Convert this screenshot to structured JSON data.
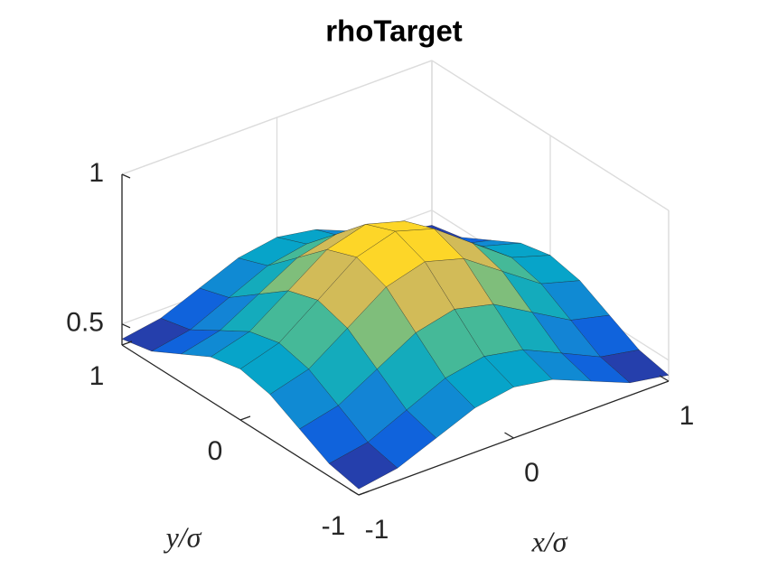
{
  "chart_data": {
    "type": "surface",
    "title": "rhoTarget",
    "xlabel": "x/σ",
    "ylabel": "y/σ",
    "x": [
      -1,
      -0.75,
      -0.5,
      -0.25,
      0,
      0.25,
      0.5,
      0.75,
      1
    ],
    "y": [
      -1,
      -0.75,
      -0.5,
      -0.25,
      0,
      0.25,
      0.5,
      0.75,
      1
    ],
    "z": [
      [
        0.45,
        0.472,
        0.525,
        0.578,
        0.6,
        0.578,
        0.525,
        0.472,
        0.45
      ],
      [
        0.472,
        0.496,
        0.556,
        0.615,
        0.64,
        0.615,
        0.556,
        0.496,
        0.472
      ],
      [
        0.525,
        0.556,
        0.63,
        0.704,
        0.735,
        0.704,
        0.63,
        0.556,
        0.525
      ],
      [
        0.578,
        0.615,
        0.704,
        0.794,
        0.831,
        0.794,
        0.704,
        0.615,
        0.578
      ],
      [
        0.6,
        0.64,
        0.735,
        0.831,
        0.87,
        0.831,
        0.735,
        0.64,
        0.6
      ],
      [
        0.578,
        0.615,
        0.704,
        0.794,
        0.831,
        0.794,
        0.704,
        0.615,
        0.578
      ],
      [
        0.525,
        0.556,
        0.63,
        0.704,
        0.735,
        0.704,
        0.63,
        0.556,
        0.525
      ],
      [
        0.472,
        0.496,
        0.556,
        0.615,
        0.64,
        0.615,
        0.556,
        0.496,
        0.472
      ],
      [
        0.45,
        0.472,
        0.525,
        0.578,
        0.6,
        0.578,
        0.525,
        0.472,
        0.45
      ]
    ],
    "xlim": [
      -1,
      1
    ],
    "ylim": [
      -1,
      1
    ],
    "zlim": [
      0.43,
      1
    ],
    "xticks": [
      -1,
      0,
      1
    ],
    "yticks": [
      -1,
      0,
      1
    ],
    "zticks": [
      0.5,
      1
    ],
    "grid": true,
    "colormap": [
      "#352a87",
      "#0f5cdd",
      "#1481d6",
      "#06a4ca",
      "#2eb7a4",
      "#87bf77",
      "#d1bb59",
      "#fec832",
      "#f9fb0e"
    ]
  }
}
